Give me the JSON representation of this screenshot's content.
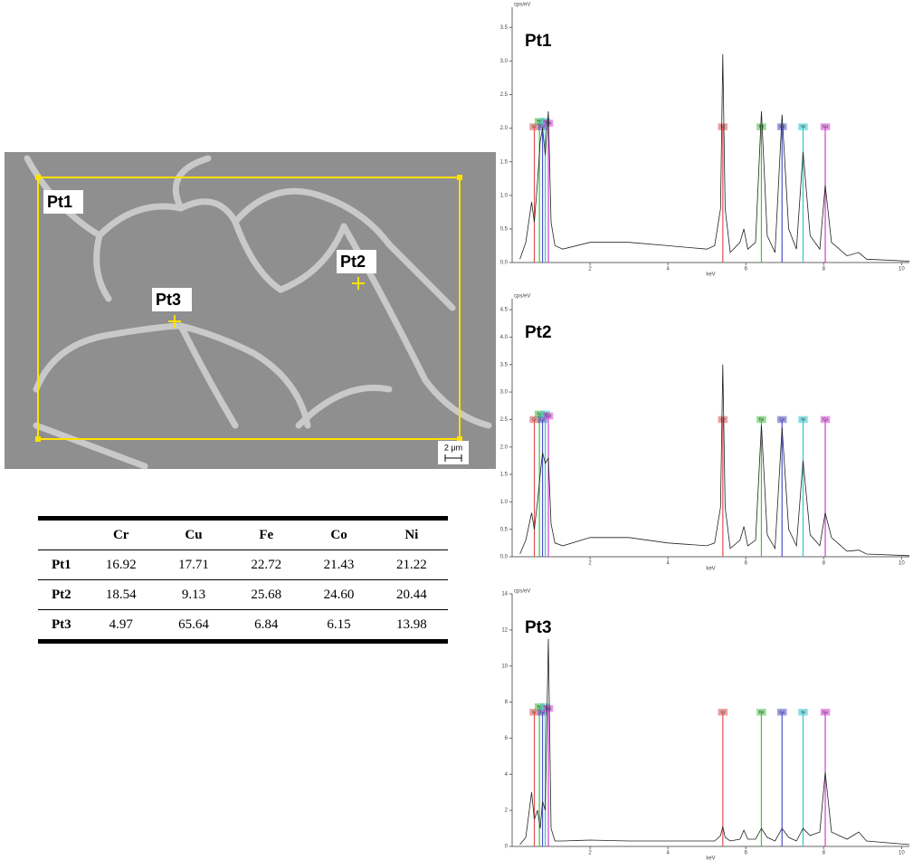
{
  "sem_image": {
    "labels": [
      "Pt1",
      "Pt2",
      "Pt3"
    ],
    "scale_bar": "2 μm"
  },
  "table": {
    "columns": [
      "Cr",
      "Cu",
      "Fe",
      "Co",
      "Ni"
    ],
    "rows": [
      {
        "label": "Pt1",
        "values": [
          "16.92",
          "17.71",
          "22.72",
          "21.43",
          "21.22"
        ]
      },
      {
        "label": "Pt2",
        "values": [
          "18.54",
          "9.13",
          "25.68",
          "24.60",
          "20.44"
        ]
      },
      {
        "label": "Pt3",
        "values": [
          "4.97",
          "65.64",
          "6.84",
          "6.15",
          "13.98"
        ]
      }
    ]
  },
  "chart_data": [
    {
      "type": "line",
      "title": "Pt1",
      "y_label": "cps/eV",
      "x_label": "keV",
      "color": "#222222",
      "xlim": [
        0,
        10.2
      ],
      "xticks": [
        2,
        4,
        6,
        8,
        10
      ],
      "ylim": [
        0,
        3.8
      ],
      "yticks": [
        {
          "value": 0,
          "label": "0.0"
        },
        0.5,
        {
          "value": 1,
          "label": "1.0"
        },
        1.5,
        {
          "value": 2,
          "label": "2.0"
        },
        2.5,
        {
          "value": 3,
          "label": "3.0"
        },
        3.5
      ],
      "x": [
        0.2,
        0.35,
        0.5,
        0.57,
        0.65,
        0.72,
        0.78,
        0.85,
        0.93,
        1.0,
        1.1,
        1.3,
        2,
        3,
        4,
        5,
        5.2,
        5.35,
        5.41,
        5.47,
        5.6,
        5.85,
        5.95,
        6.05,
        6.25,
        6.4,
        6.55,
        6.75,
        6.93,
        7.1,
        7.3,
        7.47,
        7.65,
        7.9,
        8.04,
        8.2,
        8.6,
        8.9,
        9.1,
        10.2
      ],
      "values": [
        0.05,
        0.3,
        0.9,
        0.6,
        1.2,
        1.8,
        2.0,
        1.6,
        2.25,
        0.6,
        0.25,
        0.2,
        0.3,
        0.3,
        0.25,
        0.2,
        0.25,
        0.8,
        3.1,
        0.8,
        0.15,
        0.3,
        0.5,
        0.2,
        0.3,
        2.25,
        0.4,
        0.15,
        2.2,
        0.5,
        0.2,
        1.65,
        0.4,
        0.2,
        1.15,
        0.3,
        0.1,
        0.15,
        0.05,
        0.02
      ],
      "markers": [
        {
          "label": "Cr",
          "x": 0.57,
          "color": "#e05050"
        },
        {
          "label": "Fe",
          "x": 0.7,
          "color": "#40c040"
        },
        {
          "label": "Co",
          "x": 0.78,
          "color": "#5050d0"
        },
        {
          "label": "Ni",
          "x": 0.85,
          "color": "#30c8d0"
        },
        {
          "label": "Cu",
          "x": 0.93,
          "color": "#d040d0"
        },
        {
          "label": "Cr",
          "x": 5.41,
          "color": "#e05050"
        },
        {
          "label": "Fe",
          "x": 6.4,
          "color": "#40c040"
        },
        {
          "label": "Co",
          "x": 6.93,
          "color": "#5050d0"
        },
        {
          "label": "Ni",
          "x": 7.47,
          "color": "#30c8d0"
        },
        {
          "label": "Cu",
          "x": 8.04,
          "color": "#d040d0"
        }
      ]
    },
    {
      "type": "line",
      "title": "Pt2",
      "y_label": "cps/eV",
      "x_label": "keV",
      "color": "#222222",
      "xlim": [
        0,
        10.2
      ],
      "xticks": [
        2,
        4,
        6,
        8,
        10
      ],
      "ylim": [
        0,
        4.7
      ],
      "yticks": [
        {
          "value": 0,
          "label": "0.0"
        },
        0.5,
        {
          "value": 1,
          "label": "1.0"
        },
        1.5,
        {
          "value": 2,
          "label": "2.0"
        },
        2.5,
        {
          "value": 3,
          "label": "3.0"
        },
        3.5,
        {
          "value": 4,
          "label": "4.0"
        },
        4.5
      ],
      "x": [
        0.2,
        0.35,
        0.5,
        0.57,
        0.65,
        0.72,
        0.78,
        0.85,
        0.93,
        1.0,
        1.1,
        1.3,
        2,
        3,
        4,
        5,
        5.2,
        5.35,
        5.41,
        5.47,
        5.6,
        5.85,
        5.95,
        6.05,
        6.25,
        6.4,
        6.55,
        6.75,
        6.93,
        7.1,
        7.3,
        7.47,
        7.65,
        7.9,
        8.04,
        8.2,
        8.6,
        8.9,
        9.1,
        10.2
      ],
      "values": [
        0.05,
        0.3,
        0.8,
        0.5,
        1.0,
        1.5,
        1.9,
        1.7,
        1.8,
        0.6,
        0.25,
        0.2,
        0.35,
        0.35,
        0.25,
        0.2,
        0.25,
        0.9,
        3.5,
        0.9,
        0.15,
        0.3,
        0.55,
        0.2,
        0.3,
        2.4,
        0.4,
        0.15,
        2.35,
        0.5,
        0.2,
        1.75,
        0.4,
        0.2,
        0.8,
        0.35,
        0.1,
        0.12,
        0.05,
        0.02
      ],
      "markers": [
        {
          "label": "Cr",
          "x": 0.57,
          "color": "#e05050"
        },
        {
          "label": "Fe",
          "x": 0.7,
          "color": "#40c040"
        },
        {
          "label": "Co",
          "x": 0.78,
          "color": "#5050d0"
        },
        {
          "label": "Ni",
          "x": 0.85,
          "color": "#30c8d0"
        },
        {
          "label": "Cu",
          "x": 0.93,
          "color": "#d040d0"
        },
        {
          "label": "Cr",
          "x": 5.41,
          "color": "#e05050"
        },
        {
          "label": "Fe",
          "x": 6.4,
          "color": "#40c040"
        },
        {
          "label": "Co",
          "x": 6.93,
          "color": "#5050d0"
        },
        {
          "label": "Ni",
          "x": 7.47,
          "color": "#30c8d0"
        },
        {
          "label": "Cu",
          "x": 8.04,
          "color": "#d040d0"
        }
      ]
    },
    {
      "type": "line",
      "title": "Pt3",
      "y_label": "cps/eV",
      "x_label": "keV",
      "color": "#222222",
      "xlim": [
        0,
        10.2
      ],
      "xticks": [
        2,
        4,
        6,
        8,
        10
      ],
      "ylim": [
        0,
        14
      ],
      "yticks": [
        0,
        2,
        4,
        6,
        8,
        10,
        12,
        14
      ],
      "x": [
        0.2,
        0.35,
        0.5,
        0.57,
        0.65,
        0.72,
        0.78,
        0.85,
        0.93,
        1.0,
        1.1,
        1.3,
        2,
        3,
        4,
        5,
        5.2,
        5.35,
        5.41,
        5.47,
        5.6,
        5.85,
        5.95,
        6.05,
        6.25,
        6.4,
        6.55,
        6.75,
        6.93,
        7.1,
        7.3,
        7.47,
        7.65,
        7.9,
        8.04,
        8.2,
        8.6,
        8.9,
        9.1,
        10.2
      ],
      "values": [
        0.1,
        0.5,
        3,
        1.5,
        2,
        1,
        2.5,
        2,
        11.5,
        1,
        0.3,
        0.3,
        0.35,
        0.3,
        0.3,
        0.3,
        0.3,
        0.6,
        1.1,
        0.5,
        0.3,
        0.4,
        0.9,
        0.4,
        0.4,
        1.0,
        0.5,
        0.3,
        1.0,
        0.5,
        0.3,
        1.0,
        0.6,
        0.8,
        4.1,
        0.8,
        0.4,
        0.8,
        0.3,
        0.1
      ],
      "markers": [
        {
          "label": "Cr",
          "x": 0.57,
          "color": "#e05050"
        },
        {
          "label": "Fe",
          "x": 0.7,
          "color": "#40c040"
        },
        {
          "label": "Co",
          "x": 0.78,
          "color": "#5050d0"
        },
        {
          "label": "Ni",
          "x": 0.85,
          "color": "#30c8d0"
        },
        {
          "label": "Cu",
          "x": 0.93,
          "color": "#d040d0"
        },
        {
          "label": "Cr",
          "x": 5.41,
          "color": "#e05050"
        },
        {
          "label": "Fe",
          "x": 6.4,
          "color": "#40c040"
        },
        {
          "label": "Co",
          "x": 6.93,
          "color": "#5050d0"
        },
        {
          "label": "Ni",
          "x": 7.47,
          "color": "#30c8d0"
        },
        {
          "label": "Cu",
          "x": 8.04,
          "color": "#d040d0"
        }
      ]
    }
  ]
}
